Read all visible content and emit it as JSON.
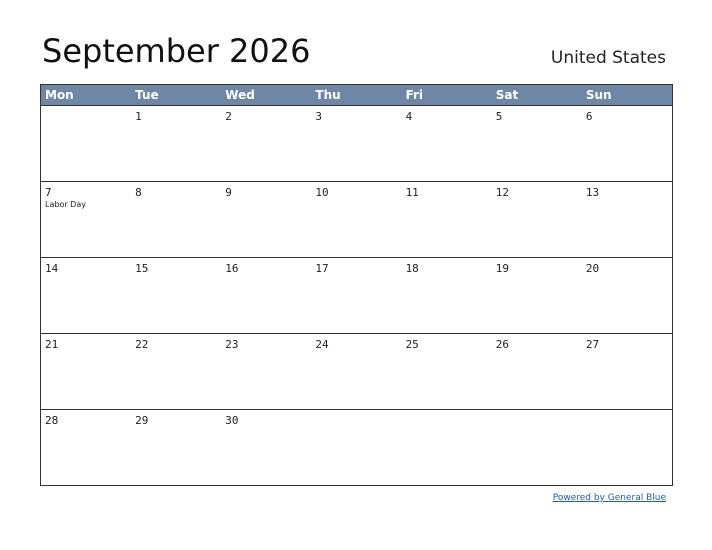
{
  "header": {
    "title": "September 2026",
    "country": "United States"
  },
  "calendar": {
    "weekdays": [
      "Mon",
      "Tue",
      "Wed",
      "Thu",
      "Fri",
      "Sat",
      "Sun"
    ],
    "weeks": [
      [
        null,
        {
          "day": 1
        },
        {
          "day": 2
        },
        {
          "day": 3
        },
        {
          "day": 4
        },
        {
          "day": 5
        },
        {
          "day": 6
        }
      ],
      [
        {
          "day": 7,
          "holiday": "Labor Day"
        },
        {
          "day": 8
        },
        {
          "day": 9
        },
        {
          "day": 10
        },
        {
          "day": 11
        },
        {
          "day": 12
        },
        {
          "day": 13
        }
      ],
      [
        {
          "day": 14
        },
        {
          "day": 15
        },
        {
          "day": 16
        },
        {
          "day": 17
        },
        {
          "day": 18
        },
        {
          "day": 19
        },
        {
          "day": 20
        }
      ],
      [
        {
          "day": 21
        },
        {
          "day": 22
        },
        {
          "day": 23
        },
        {
          "day": 24
        },
        {
          "day": 25
        },
        {
          "day": 26
        },
        {
          "day": 27
        }
      ],
      [
        {
          "day": 28
        },
        {
          "day": 29
        },
        {
          "day": 30
        },
        null,
        null,
        null,
        null
      ]
    ]
  },
  "footer": {
    "link": "Powered by General Blue"
  }
}
